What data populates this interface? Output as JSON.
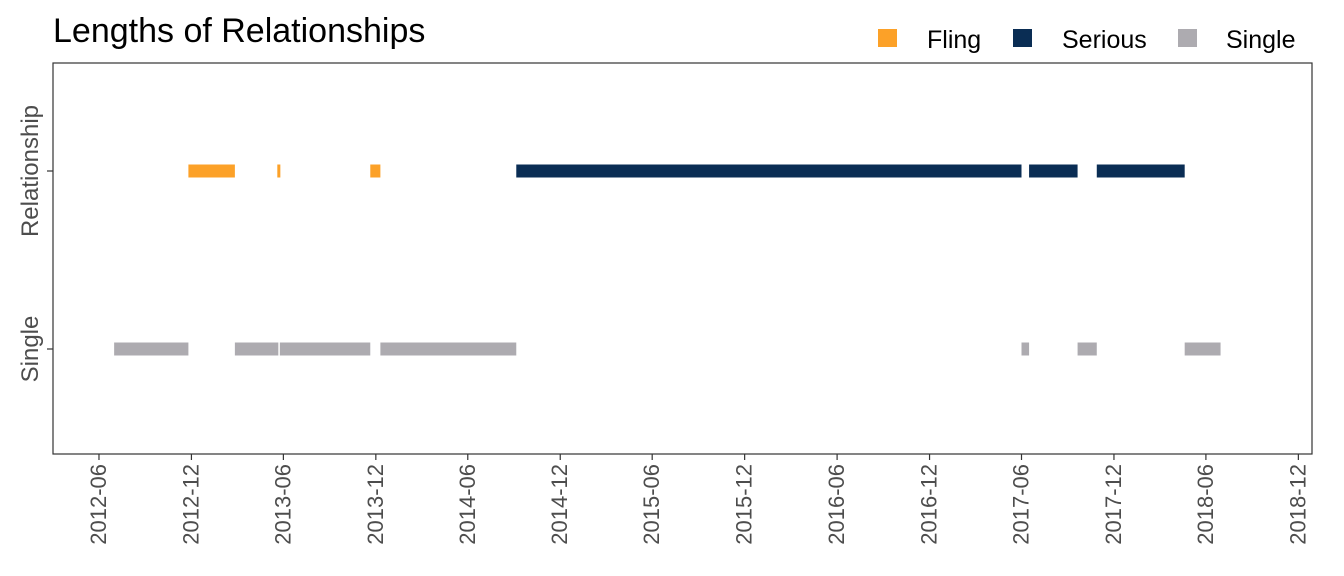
{
  "chart_data": {
    "type": "timeline",
    "title": "Lengths of Relationships",
    "categories": [
      "Single",
      "Relationship"
    ],
    "x_tick_labels": [
      "2012-06",
      "2012-12",
      "2013-06",
      "2013-12",
      "2014-06",
      "2014-12",
      "2015-06",
      "2015-12",
      "2016-06",
      "2016-12",
      "2017-06",
      "2017-12",
      "2018-06",
      "2018-12"
    ],
    "xlim": [
      "2012-03-02",
      "2018-12-28"
    ],
    "legend": {
      "position": "top-right",
      "items": [
        {
          "label": "Fling",
          "color": "#fca128"
        },
        {
          "label": "Serious",
          "color": "#0a2d54"
        },
        {
          "label": "Single",
          "color": "#adabb0"
        }
      ]
    },
    "series": [
      {
        "name": "Fling",
        "category": "Relationship",
        "color": "#fca128",
        "segments": [
          {
            "start": "2012-11-25",
            "end": "2013-02-25"
          },
          {
            "start": "2013-05-20",
            "end": "2013-05-26"
          },
          {
            "start": "2013-11-20",
            "end": "2013-12-10"
          }
        ]
      },
      {
        "name": "Serious",
        "category": "Relationship",
        "color": "#0a2d54",
        "segments": [
          {
            "start": "2014-09-05",
            "end": "2017-06-01"
          },
          {
            "start": "2017-06-16",
            "end": "2017-09-20"
          },
          {
            "start": "2017-10-28",
            "end": "2018-04-20"
          }
        ]
      },
      {
        "name": "Single",
        "category": "Single",
        "color": "#adabb0",
        "segments": [
          {
            "start": "2012-07-01",
            "end": "2012-11-25"
          },
          {
            "start": "2013-02-25",
            "end": "2013-05-22"
          },
          {
            "start": "2013-05-25",
            "end": "2013-11-20"
          },
          {
            "start": "2013-12-10",
            "end": "2014-09-05"
          },
          {
            "start": "2017-06-01",
            "end": "2017-06-16"
          },
          {
            "start": "2017-09-20",
            "end": "2017-10-28"
          },
          {
            "start": "2018-04-20",
            "end": "2018-06-30"
          }
        ]
      }
    ]
  }
}
